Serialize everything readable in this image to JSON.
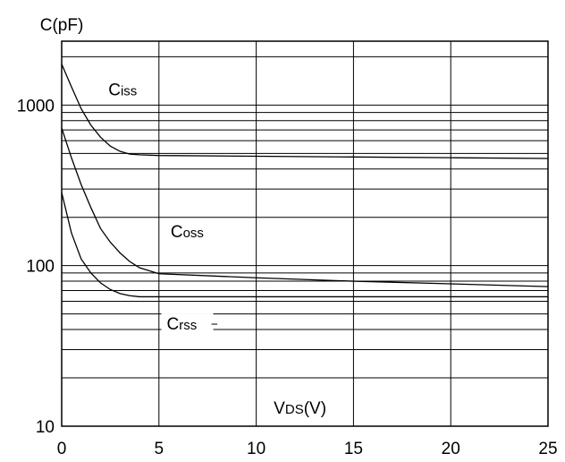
{
  "chart_data": {
    "type": "line",
    "ylabel": "C(pF)",
    "xlabel": {
      "main": "V",
      "sub": "DS",
      "tail": "(V)"
    },
    "xlim": [
      0,
      25
    ],
    "ylim": [
      10,
      2500
    ],
    "yscale": "log",
    "grid": true,
    "x_ticks": [
      0,
      5,
      10,
      15,
      20,
      25
    ],
    "x_tick_labels": [
      "0",
      "5",
      "10",
      "15",
      "20",
      "25"
    ],
    "y_ticks": [
      10,
      100,
      1000
    ],
    "y_tick_labels": [
      "10",
      "100",
      "1000"
    ],
    "y_gridlines": [
      20,
      30,
      40,
      50,
      60,
      70,
      80,
      90,
      100,
      200,
      300,
      400,
      500,
      600,
      700,
      800,
      900,
      1000,
      2000
    ],
    "series": [
      {
        "name": "Ciss",
        "label": {
          "main": "C",
          "sub": "iss"
        },
        "label_pos": {
          "x": 2.4,
          "y": 1150
        },
        "x": [
          0,
          0.5,
          1,
          1.5,
          2,
          2.5,
          3,
          3.5,
          4,
          5,
          10,
          15,
          20,
          25
        ],
        "y": [
          1800,
          1300,
          950,
          750,
          630,
          555,
          515,
          495,
          490,
          485,
          480,
          475,
          470,
          465
        ]
      },
      {
        "name": "Coss",
        "label": {
          "main": "C",
          "sub": "oss"
        },
        "label_pos": {
          "x": 5.6,
          "y": 150
        },
        "x": [
          0,
          0.5,
          1,
          1.5,
          2,
          2.5,
          3,
          3.5,
          4,
          5,
          10,
          15,
          20,
          25
        ],
        "y": [
          720,
          470,
          320,
          230,
          170,
          140,
          120,
          106,
          97,
          89,
          84,
          80,
          77,
          74
        ],
        "label_leader": false
      },
      {
        "name": "Crss",
        "label": {
          "main": "C",
          "sub": "rss"
        },
        "label_pos": {
          "x": 5.4,
          "y": 40
        },
        "x": [
          0,
          0.5,
          1,
          1.5,
          2,
          2.5,
          3,
          3.5,
          4,
          5,
          10,
          15,
          20,
          25
        ],
        "y": [
          285,
          160,
          110,
          90,
          78,
          71,
          67,
          65,
          64,
          64,
          64,
          64,
          64,
          64
        ],
        "label_leader": true
      }
    ]
  }
}
